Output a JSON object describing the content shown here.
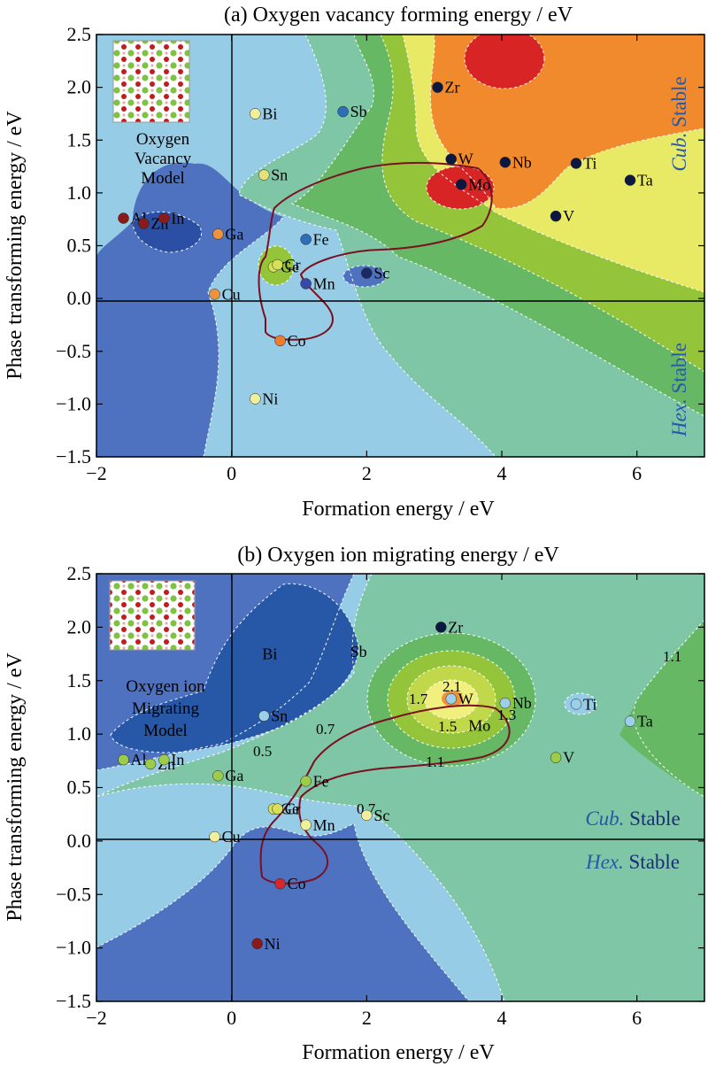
{
  "chart_data": [
    {
      "type": "scatter",
      "title": "(a) Oxygen vacancy forming energy / eV",
      "xlabel": "Formation energy / eV",
      "ylabel": "Phase transforming energy / eV",
      "xlim": [
        -2,
        7
      ],
      "ylim": [
        -1.5,
        2.5
      ],
      "x_ticks": [
        "−2",
        "0",
        "2",
        "4",
        "6"
      ],
      "y_ticks": [
        "−1.5",
        "−1.0",
        "−0.5",
        "0.0",
        "0.5",
        "1.0",
        "1.5",
        "2.0",
        "2.5"
      ],
      "inset_label": [
        "Oxygen",
        "Vacancy",
        "Model"
      ],
      "region_labels": {
        "cub": {
          "italic": "Cub.",
          "rest": " Stable"
        },
        "hex": {
          "italic": "Hex.",
          "rest": " Stable"
        }
      },
      "contour_labels": [],
      "points": [
        {
          "label": "Al",
          "x": -1.6,
          "y": 0.76,
          "color": "#8b1a1a"
        },
        {
          "label": "Zn",
          "x": -1.3,
          "y": 0.71,
          "color": "#8b1a1a"
        },
        {
          "label": "In",
          "x": -1.0,
          "y": 0.76,
          "color": "#8b1a1a"
        },
        {
          "label": "Ga",
          "x": -0.2,
          "y": 0.61,
          "color": "#f0923a"
        },
        {
          "label": "Cu",
          "x": -0.25,
          "y": 0.04,
          "color": "#f0923a"
        },
        {
          "label": "Bi",
          "x": 0.35,
          "y": 1.75,
          "color": "#f0ef9a"
        },
        {
          "label": "Sn",
          "x": 0.48,
          "y": 1.17,
          "color": "#e4e07a"
        },
        {
          "label": "Ni",
          "x": 0.35,
          "y": -0.95,
          "color": "#f0ef9a"
        },
        {
          "label": "Ge",
          "x": 0.62,
          "y": 0.3,
          "color": "#d6e05a"
        },
        {
          "label": "Cr",
          "x": 0.68,
          "y": 0.32,
          "color": "#d6e05a"
        },
        {
          "label": "Co",
          "x": 0.72,
          "y": -0.4,
          "color": "#f07b2a"
        },
        {
          "label": "Fe",
          "x": 1.1,
          "y": 0.56,
          "color": "#2f6db5"
        },
        {
          "label": "Mn",
          "x": 1.1,
          "y": 0.14,
          "color": "#3a49a8"
        },
        {
          "label": "Sb",
          "x": 1.65,
          "y": 1.77,
          "color": "#2f6db5"
        },
        {
          "label": "Sc",
          "x": 2.0,
          "y": 0.24,
          "color": "#1b2a66"
        },
        {
          "label": "Zr",
          "x": 3.05,
          "y": 2.0,
          "color": "#0d1840"
        },
        {
          "label": "W",
          "x": 3.25,
          "y": 1.32,
          "color": "#0d1840"
        },
        {
          "label": "Mo",
          "x": 3.4,
          "y": 1.08,
          "color": "#0d1840"
        },
        {
          "label": "Nb",
          "x": 4.05,
          "y": 1.29,
          "color": "#0d1840"
        },
        {
          "label": "V",
          "x": 4.8,
          "y": 0.78,
          "color": "#0d1840"
        },
        {
          "label": "Ti",
          "x": 5.1,
          "y": 1.28,
          "color": "#0d1840"
        },
        {
          "label": "Ta",
          "x": 5.9,
          "y": 1.12,
          "color": "#0d1840"
        }
      ]
    },
    {
      "type": "scatter",
      "title": "(b) Oxygen ion migrating energy / eV",
      "xlabel": "Formation energy / eV",
      "ylabel": "Phase transforming energy / eV",
      "xlim": [
        -2,
        7
      ],
      "ylim": [
        -1.5,
        2.5
      ],
      "x_ticks": [
        "−2",
        "0",
        "2",
        "4",
        "6"
      ],
      "y_ticks": [
        "−1.5",
        "−1.0",
        "−0.5",
        "0.0",
        "0.5",
        "1.0",
        "1.5",
        "2.0",
        "2.5"
      ],
      "inset_label": [
        "Oxygen ion",
        "Migrating",
        "Model"
      ],
      "region_labels": {
        "cub": {
          "italic": "Cub.",
          "rest": " Stable"
        },
        "hex": {
          "italic": "Hex.",
          "rest": " Stable"
        }
      },
      "contour_labels": [
        "0.5",
        "0.7",
        "0.7",
        "1.1",
        "1.1",
        "1.3",
        "1.5",
        "1.7",
        "2.1"
      ],
      "points": [
        {
          "label": "Al",
          "x": -1.6,
          "y": 0.76,
          "color": "#9ccc4a"
        },
        {
          "label": "Zn",
          "x": -1.2,
          "y": 0.72,
          "color": "#9ccc4a"
        },
        {
          "label": "In",
          "x": -1.0,
          "y": 0.76,
          "color": "#9ccc4a"
        },
        {
          "label": "Ga",
          "x": -0.2,
          "y": 0.61,
          "color": "#9ccc4a"
        },
        {
          "label": "Cu",
          "x": -0.25,
          "y": 0.04,
          "color": "#f0ef9a"
        },
        {
          "label": "Bi",
          "x": 0.35,
          "y": 1.75,
          "color": ""
        },
        {
          "label": "Sn",
          "x": 0.48,
          "y": 1.17,
          "color": "#9ccfe8"
        },
        {
          "label": "Ni",
          "x": 0.38,
          "y": -0.96,
          "color": "#8b1a1a"
        },
        {
          "label": "Ge",
          "x": 0.62,
          "y": 0.3,
          "color": "#d6e05a"
        },
        {
          "label": "Cr",
          "x": 0.68,
          "y": 0.3,
          "color": "#d6e05a"
        },
        {
          "label": "Co",
          "x": 0.72,
          "y": -0.4,
          "color": "#d6282a"
        },
        {
          "label": "Fe",
          "x": 1.1,
          "y": 0.56,
          "color": "#9ccc4a"
        },
        {
          "label": "Mn",
          "x": 1.1,
          "y": 0.15,
          "color": "#f0ef9a"
        },
        {
          "label": "Sb",
          "x": 1.65,
          "y": 1.77,
          "color": ""
        },
        {
          "label": "Sc",
          "x": 2.0,
          "y": 0.24,
          "color": "#f0ef9a"
        },
        {
          "label": "Zr",
          "x": 3.1,
          "y": 2.0,
          "color": "#0d1840"
        },
        {
          "label": "W",
          "x": 3.25,
          "y": 1.33,
          "color": "#9ccfe8"
        },
        {
          "label": "Mo",
          "x": 3.4,
          "y": 1.08,
          "color": ""
        },
        {
          "label": "Nb",
          "x": 4.05,
          "y": 1.29,
          "color": "#9ccfe8"
        },
        {
          "label": "V",
          "x": 4.8,
          "y": 0.78,
          "color": "#9ccc4a"
        },
        {
          "label": "Ti",
          "x": 5.1,
          "y": 1.28,
          "color": "#9ccfe8"
        },
        {
          "label": "Ta",
          "x": 5.9,
          "y": 1.12,
          "color": "#9ccfe8"
        }
      ]
    }
  ]
}
